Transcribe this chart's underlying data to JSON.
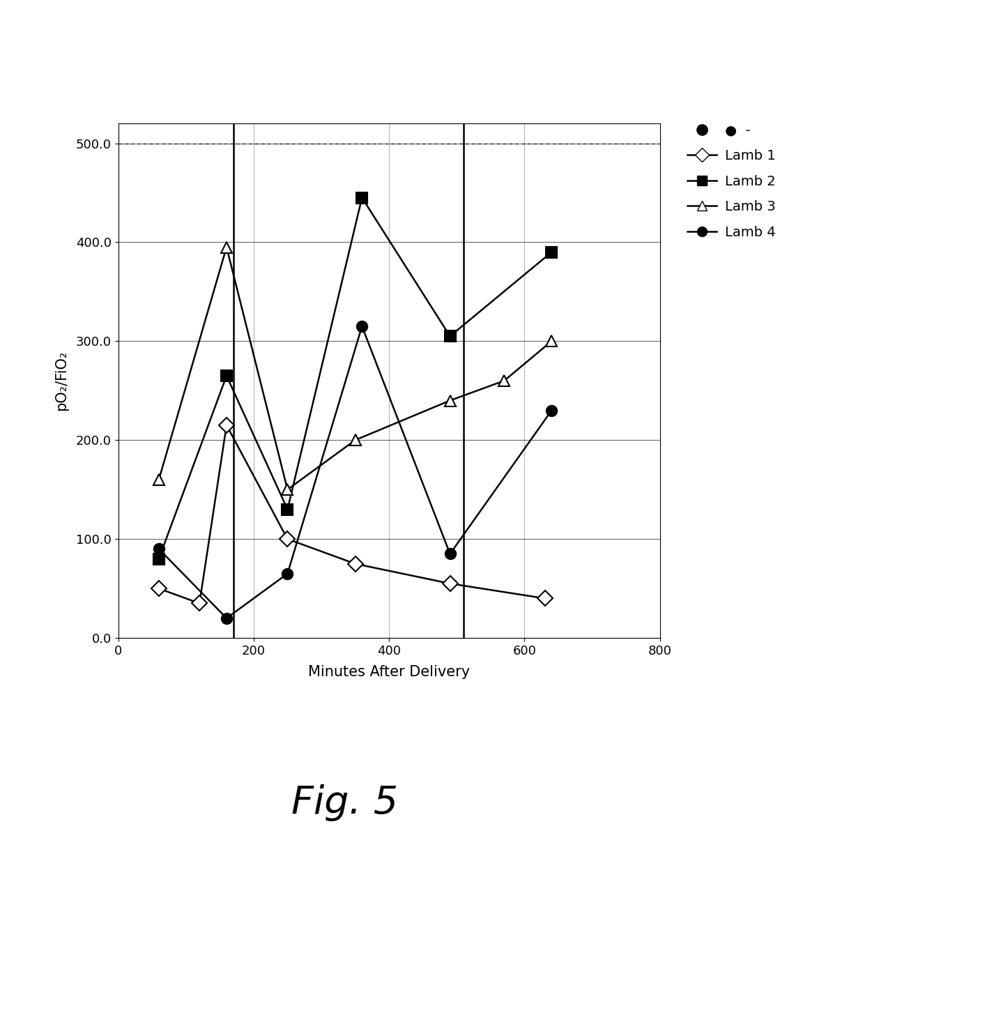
{
  "lamb1": {
    "x": [
      60,
      120,
      160,
      250,
      350,
      490,
      630
    ],
    "y": [
      50,
      35,
      215,
      100,
      75,
      55,
      40
    ],
    "label": "Lamb 1",
    "marker": "D",
    "color": "black",
    "markerfacecolor": "white"
  },
  "lamb2": {
    "x": [
      60,
      160,
      250,
      360,
      490,
      640
    ],
    "y": [
      80,
      265,
      130,
      445,
      305,
      390
    ],
    "label": "Lamb 2",
    "marker": "s",
    "color": "black",
    "markerfacecolor": "black"
  },
  "lamb3": {
    "x": [
      60,
      160,
      250,
      350,
      490,
      570,
      640
    ],
    "y": [
      160,
      395,
      150,
      200,
      240,
      260,
      300
    ],
    "label": "Lamb 3",
    "marker": "^",
    "color": "black",
    "markerfacecolor": "white"
  },
  "lamb4": {
    "x": [
      60,
      160,
      250,
      360,
      490,
      640
    ],
    "y": [
      90,
      20,
      65,
      315,
      85,
      230
    ],
    "label": "Lamb 4",
    "marker": "o",
    "color": "black",
    "markerfacecolor": "black"
  },
  "vlines": [
    170,
    510
  ],
  "xlabel": "Minutes After Delivery",
  "ylabel": "pO₂/FiO₂",
  "xlim": [
    0,
    800
  ],
  "ylim": [
    0.0,
    520.0
  ],
  "yticks": [
    0.0,
    100.0,
    200.0,
    300.0,
    400.0,
    500.0
  ],
  "yticklabels": [
    "0.0",
    "100.0",
    "200.0",
    "300.0",
    "400.0",
    "500.0"
  ],
  "xticks": [
    0,
    200,
    400,
    600,
    800
  ],
  "background_color": "#ffffff",
  "marker_size": 11,
  "linewidth": 1.8
}
